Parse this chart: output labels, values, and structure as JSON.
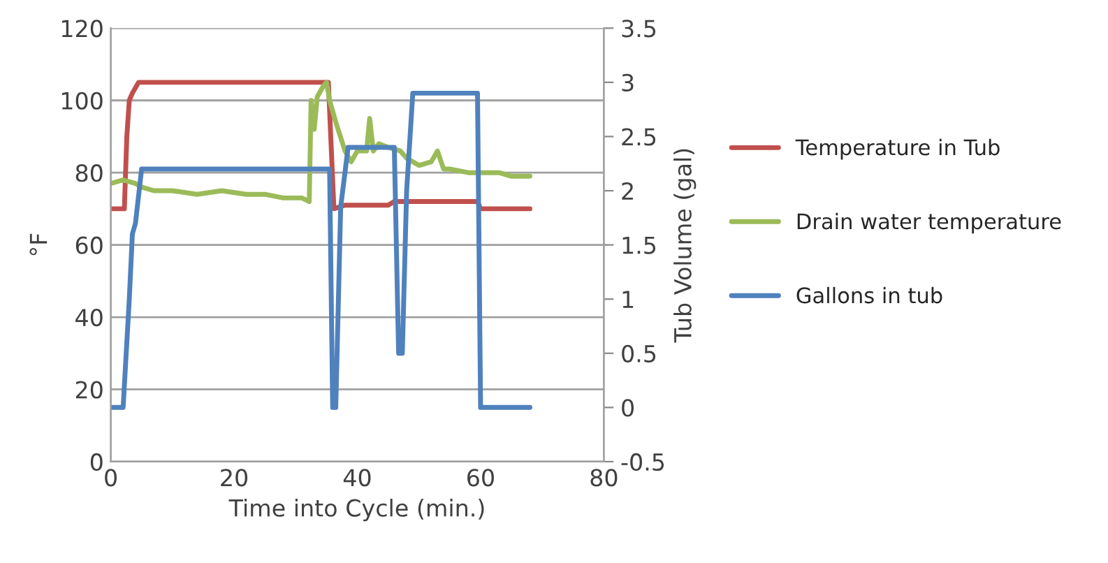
{
  "chart_data": {
    "type": "line",
    "xlabel": "Time into Cycle (min.)",
    "ylabel": "°F",
    "y2label": "Tub Volume (gal)",
    "xlim": [
      0,
      80
    ],
    "xticks": [
      0,
      20,
      40,
      60,
      80
    ],
    "ylim": [
      0,
      120
    ],
    "yticks": [
      0,
      20,
      40,
      60,
      80,
      100,
      120
    ],
    "y2lim": [
      -0.5,
      3.5
    ],
    "y2ticks": [
      -0.5,
      0,
      0.5,
      1,
      1.5,
      2,
      2.5,
      3,
      3.5
    ],
    "grid": "y",
    "legend": "right",
    "marker": "none",
    "line_style": "solid",
    "series": [
      {
        "name": "Temperature in Tub",
        "color": "#c0504d",
        "x": [
          0,
          2.2,
          2.6,
          3.0,
          3.5,
          4.5,
          35.3,
          36.2,
          38,
          45,
          46,
          59.5,
          60,
          68
        ],
        "values": [
          70,
          70,
          90,
          100,
          102,
          105,
          105,
          70,
          71,
          71,
          72,
          72,
          70,
          70
        ]
      },
      {
        "name": "Drain water temperature",
        "color": "#9bbb59",
        "x": [
          0,
          2,
          4,
          5,
          7,
          10,
          14,
          18,
          22,
          25,
          28,
          31,
          32.2,
          32.5,
          33,
          33.5,
          34.5,
          35,
          35.5,
          36.5,
          38,
          39,
          40,
          41.5,
          42,
          42.6,
          43.5,
          45,
          47,
          48,
          50,
          52,
          53,
          54,
          55,
          58,
          60,
          63,
          65,
          68
        ],
        "values": [
          77,
          78,
          77,
          76,
          75,
          75,
          74,
          75,
          74,
          74,
          73,
          73,
          72,
          100,
          92,
          101,
          104,
          105,
          100,
          94,
          86,
          83,
          86,
          86,
          95,
          86,
          88,
          87,
          86,
          84,
          82,
          83,
          86,
          81,
          81,
          80,
          80,
          80,
          79,
          79
        ]
      },
      {
        "name": "Gallons in tub",
        "color": "#4f81bd",
        "axis": "y2",
        "x": [
          0,
          2,
          3.0,
          3.5,
          4.0,
          5.0,
          35.5,
          36.0,
          36.5,
          37.3,
          38.5,
          46.0,
          46.7,
          47.3,
          48.0,
          49.0,
          59.5,
          60.0,
          68
        ],
        "values": [
          0,
          0,
          1.0,
          1.6,
          1.7,
          2.2,
          2.2,
          0,
          0,
          1.85,
          2.4,
          2.4,
          0.5,
          0.5,
          2.0,
          2.9,
          2.9,
          0,
          0
        ]
      }
    ]
  }
}
